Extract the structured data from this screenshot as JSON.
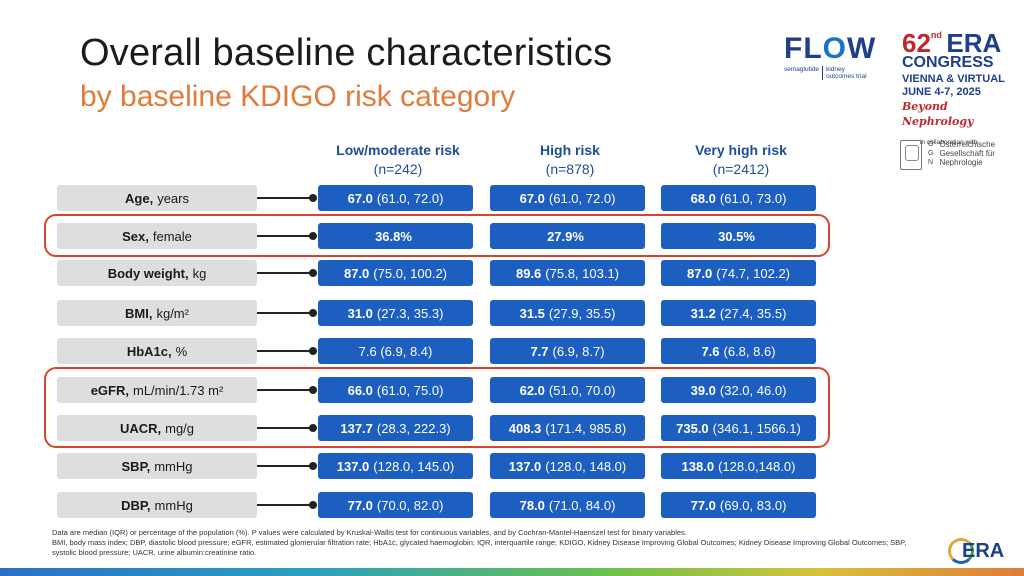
{
  "title": "Overall baseline characteristics",
  "subtitle": "by baseline KDIGO risk category",
  "logos": {
    "flow": {
      "word_a": "FL",
      "word_o": "O",
      "word_b": "W",
      "drug": "semaglutide",
      "kidney": "kidney",
      "trial": "outcomes trial"
    },
    "era": {
      "number": "62",
      "suffix": "nd",
      "word": "ERA",
      "congress": "CONGRESS",
      "location": "VIENNA & VIRTUAL",
      "dates": "JUNE 4-7, 2025",
      "tagline": "Beyond Nephrology",
      "collab": "in collaboration with"
    },
    "oegn": {
      "letters": [
        "Ö",
        "G",
        "N"
      ],
      "name_lines": [
        "Österreichische",
        "Gesellschaft für",
        "Nephrologie"
      ]
    },
    "bottom": "ERA"
  },
  "columns": [
    {
      "name": "Low/moderate risk",
      "n": "(n=242)"
    },
    {
      "name": "High risk",
      "n": "(n=878)"
    },
    {
      "name": "Very high risk",
      "n": "(n=2412)"
    }
  ],
  "rows": [
    {
      "label": "Age,",
      "unit": "years",
      "cells": [
        {
          "main": "67.0",
          "rest": "(61.0, 72.0)"
        },
        {
          "main": "67.0",
          "rest": "(61.0, 72.0)"
        },
        {
          "main": "68.0",
          "rest": "(61.0, 73.0)"
        }
      ]
    },
    {
      "label": "Sex,",
      "unit": "female",
      "cells": [
        {
          "main": "36.8%",
          "rest": ""
        },
        {
          "main": "27.9%",
          "rest": ""
        },
        {
          "main": "30.5%",
          "rest": ""
        }
      ]
    },
    {
      "label": "Body weight,",
      "unit": "kg",
      "cells": [
        {
          "main": "87.0",
          "rest": "(75.0, 100.2)"
        },
        {
          "main": "89.6",
          "rest": "(75.8, 103.1)"
        },
        {
          "main": "87.0",
          "rest": "(74.7, 102.2)"
        }
      ]
    },
    {
      "label": "BMI,",
      "unit": "kg/m²",
      "cells": [
        {
          "main": "31.0",
          "rest": "(27.3, 35.3)"
        },
        {
          "main": "31.5",
          "rest": "(27.9, 35.5)"
        },
        {
          "main": "31.2",
          "rest": "(27.4, 35.5)"
        }
      ]
    },
    {
      "label": "HbA1c,",
      "unit": "%",
      "cells": [
        {
          "main": "",
          "rest": "7.6 (6.9, 8.4)"
        },
        {
          "main": "7.7",
          "rest": "(6.9, 8.7)"
        },
        {
          "main": "7.6",
          "rest": "(6.8, 8.6)"
        }
      ]
    },
    {
      "label": "eGFR,",
      "unit": "mL/min/1.73 m²",
      "cells": [
        {
          "main": "66.0",
          "rest": "(61.0, 75.0)"
        },
        {
          "main": "62.0",
          "rest": "(51.0, 70.0)"
        },
        {
          "main": "39.0",
          "rest": "(32.0, 46.0)"
        }
      ]
    },
    {
      "label": "UACR,",
      "unit": "mg/g",
      "cells": [
        {
          "main": "137.7",
          "rest": "(28.3, 222.3)"
        },
        {
          "main": "408.3",
          "rest": "(171.4, 985.8)"
        },
        {
          "main": "735.0",
          "rest": "(346.1, 1566.1)"
        }
      ]
    },
    {
      "label": "SBP,",
      "unit": "mmHg",
      "cells": [
        {
          "main": "137.0",
          "rest": "(128.0, 145.0)"
        },
        {
          "main": "137.0",
          "rest": "(128.0, 148.0)"
        },
        {
          "main": "138.0",
          "rest": "(128.0,148.0)"
        }
      ]
    },
    {
      "label": "DBP,",
      "unit": "mmHg",
      "cells": [
        {
          "main": "77.0",
          "rest": "(70.0, 82.0)"
        },
        {
          "main": "78.0",
          "rest": "(71.0, 84.0)"
        },
        {
          "main": "77.0",
          "rest": "(69.0, 83.0)"
        }
      ]
    }
  ],
  "colors": {
    "cell": "#1d5fc0",
    "header": "#1f4d96",
    "subtitle": "#e07b39",
    "highlight": "#d9442e"
  },
  "footnote": {
    "line1": "Data are median (IQR) or percentage of the population (%). P values were calculated by Kruskal-Wallis test for continuous variables, and by Cochran-Mantel-Haenszel test for binary variables.",
    "line2": "BMI, body mass index; DBP, diastolic blood pressure; eGFR, estimated glomerular filtration rate; HbA1c, glycated haemoglobin; IQR, interquartile range; KDIGO, Kidney Disease Improving Global Outcomes; Kidney Disease Improving Global Outcomes; SBP, systolic blood pressure; UACR, urine albumin:creatinine ratio."
  }
}
